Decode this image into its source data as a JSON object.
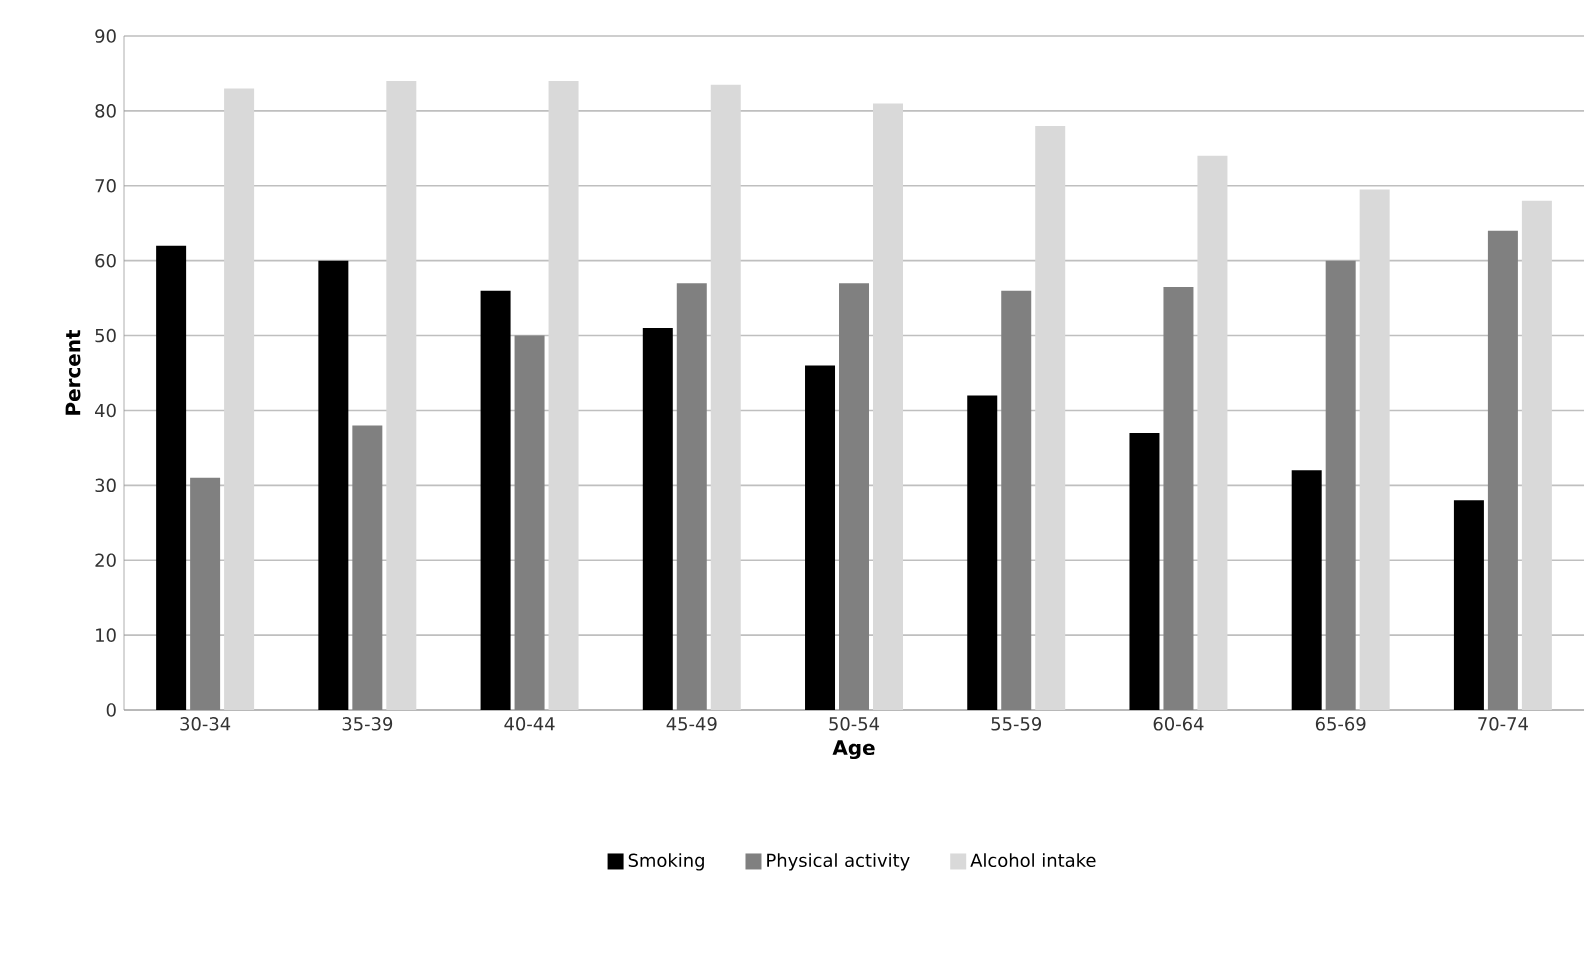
{
  "chart_data": {
    "type": "bar",
    "xlabel": "Age",
    "ylabel": "Percent",
    "categories": [
      "30-34",
      "35-39",
      "40-44",
      "45-49",
      "50-54",
      "55-59",
      "60-64",
      "65-69",
      "70-74"
    ],
    "series": [
      {
        "name": "Smoking",
        "color": "#000000",
        "values": [
          62,
          60,
          56,
          51,
          46,
          42,
          37,
          32,
          28
        ]
      },
      {
        "name": "Physical activity",
        "color": "#808080",
        "values": [
          31,
          38,
          50,
          57,
          57,
          56,
          56.5,
          60,
          64
        ]
      },
      {
        "name": "Alcohol intake",
        "color": "#d9d9d9",
        "values": [
          83,
          84,
          84,
          83.5,
          81,
          78,
          74,
          69.5,
          68
        ]
      }
    ],
    "ylim": [
      0,
      90
    ],
    "yticks": [
      0,
      10,
      20,
      30,
      40,
      50,
      60,
      70,
      80,
      90
    ],
    "grid": "y",
    "legend": "bottom"
  }
}
